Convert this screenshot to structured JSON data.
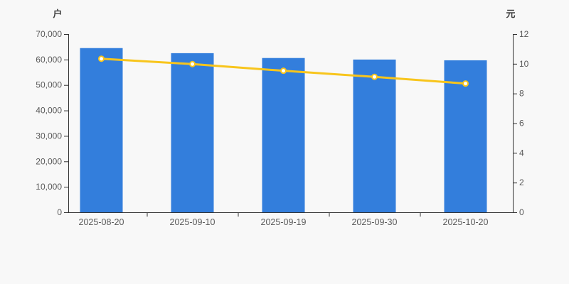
{
  "chart_data": {
    "type": "bar",
    "title": "",
    "categories": [
      "2025-08-20",
      "2025-09-10",
      "2025-09-19",
      "2025-09-30",
      "2025-10-20"
    ],
    "series": [
      {
        "id": "bars",
        "type": "bar",
        "y_axis": "left",
        "values": [
          64500,
          62500,
          60600,
          60000,
          59700
        ],
        "color": "#337edc"
      },
      {
        "id": "line",
        "type": "line",
        "y_axis": "right",
        "values": [
          10.34,
          9.98,
          9.53,
          9.12,
          8.67
        ],
        "color": "#f8c51c",
        "point_fill": "#ffffff"
      }
    ],
    "left_axis": {
      "name": "户",
      "min": 0,
      "max": 70000,
      "tick_labels": [
        "0",
        "10,000",
        "20,000",
        "30,000",
        "40,000",
        "50,000",
        "60,000",
        "70,000"
      ]
    },
    "right_axis": {
      "name": "元",
      "min": 0,
      "max": 12,
      "tick_labels": [
        "0",
        "2",
        "4",
        "6",
        "8",
        "10",
        "12"
      ]
    },
    "grid": false,
    "legend": null,
    "colors": {
      "background": "#f8f8f8",
      "axis_line": "#333333",
      "tick_label": "#595959",
      "axis_name": "#404040"
    }
  }
}
